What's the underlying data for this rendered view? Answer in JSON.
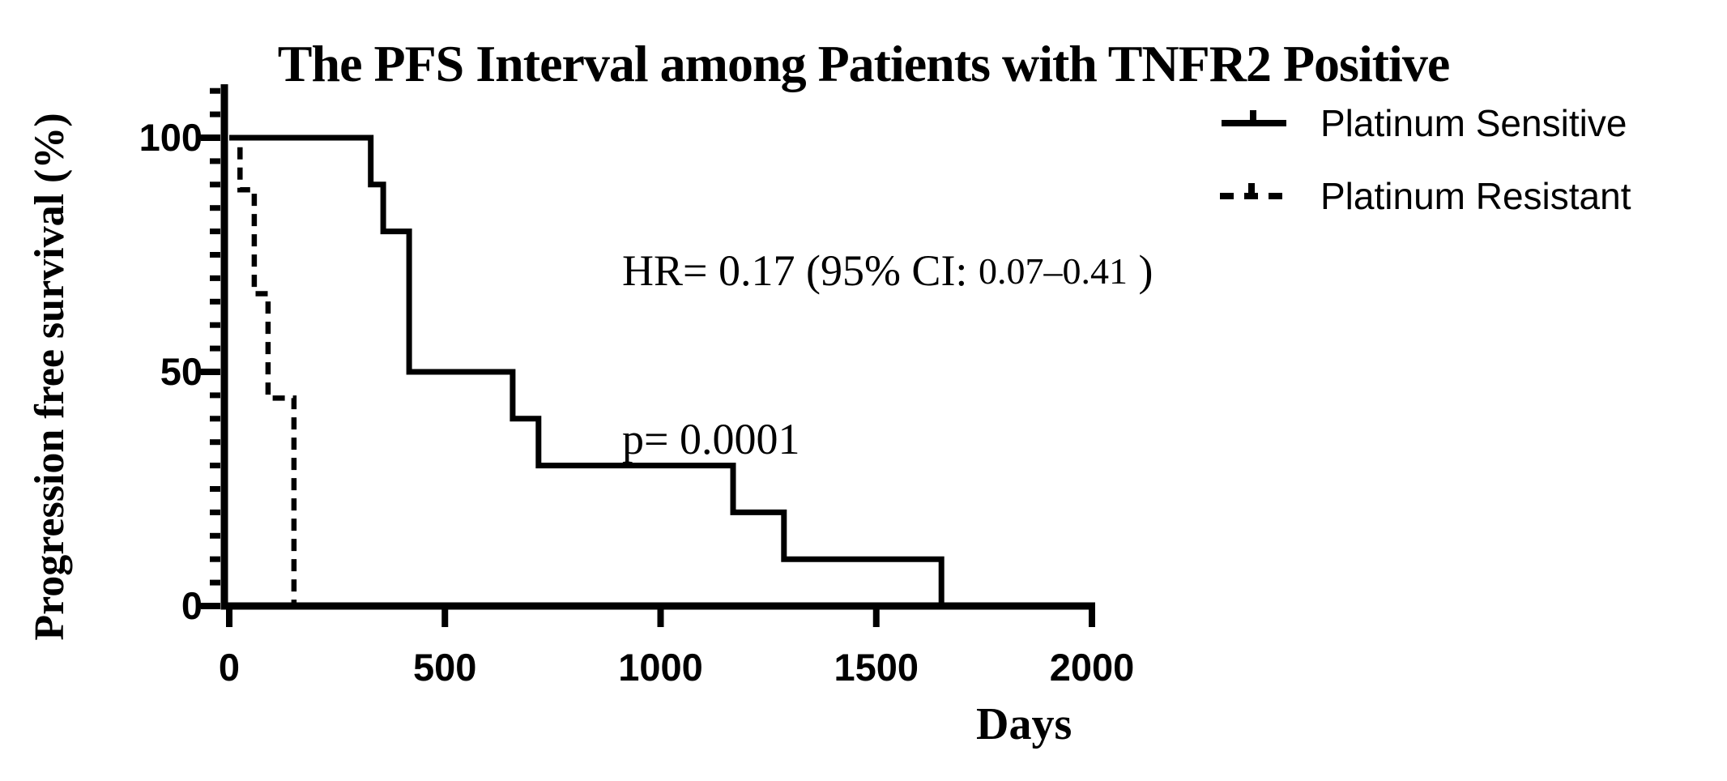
{
  "figure": {
    "background_color": "#ffffff",
    "foreground_color": "#000000"
  },
  "chart_data": {
    "type": "line",
    "subtype": "kaplan-meier-step-survival",
    "title": "The PFS Interval among Patients with TNFR2 Positive",
    "xlabel": "Days",
    "ylabel": "Progression free survival (%)",
    "xlim": [
      0,
      2000
    ],
    "ylim": [
      0,
      100
    ],
    "x_ticks": [
      "0",
      "500",
      "1000",
      "1500",
      "2000"
    ],
    "x_tick_values": [
      0,
      500,
      1000,
      1500,
      2000
    ],
    "y_ticks": [
      "0",
      "50",
      "100"
    ],
    "y_tick_values": [
      0,
      50,
      100
    ],
    "y_minor_tick_step": 5,
    "y_minor_tick_max": 110,
    "grid": false,
    "legend_position": "top-right",
    "legend": [
      {
        "label": "Platinum Sensitive",
        "line_style": "solid",
        "marker": "tick"
      },
      {
        "label": "Platinum Resistant",
        "line_style": "dashed",
        "marker": "tick"
      }
    ],
    "series": [
      {
        "name": "Platinum Sensitive",
        "line_style": "solid",
        "color": "#000000",
        "points_day_percent": [
          [
            0,
            100
          ],
          [
            328,
            100
          ],
          [
            328,
            90
          ],
          [
            357,
            90
          ],
          [
            357,
            80
          ],
          [
            417,
            80
          ],
          [
            417,
            50
          ],
          [
            657,
            50
          ],
          [
            657,
            40
          ],
          [
            717,
            40
          ],
          [
            717,
            30
          ],
          [
            1168,
            30
          ],
          [
            1168,
            20
          ],
          [
            1286,
            20
          ],
          [
            1286,
            10
          ],
          [
            1651,
            10
          ],
          [
            1651,
            0
          ]
        ]
      },
      {
        "name": "Platinum Resistant",
        "line_style": "dashed",
        "color": "#000000",
        "points_day_percent": [
          [
            0,
            100
          ],
          [
            25,
            100
          ],
          [
            25,
            88.9
          ],
          [
            58,
            88.9
          ],
          [
            58,
            66.7
          ],
          [
            90,
            66.7
          ],
          [
            90,
            44.4
          ],
          [
            150,
            44.4
          ],
          [
            150,
            0
          ]
        ]
      }
    ],
    "annotations": {
      "hr_prefix": "HR= 0.17 (95% CI: ",
      "hr_ci": "0.07–0.41",
      "hr_suffix": " )",
      "hr_full": "HR= 0.17 (95% CI: 0.07–0.41 )",
      "p_label": "p= 0.0001"
    }
  }
}
